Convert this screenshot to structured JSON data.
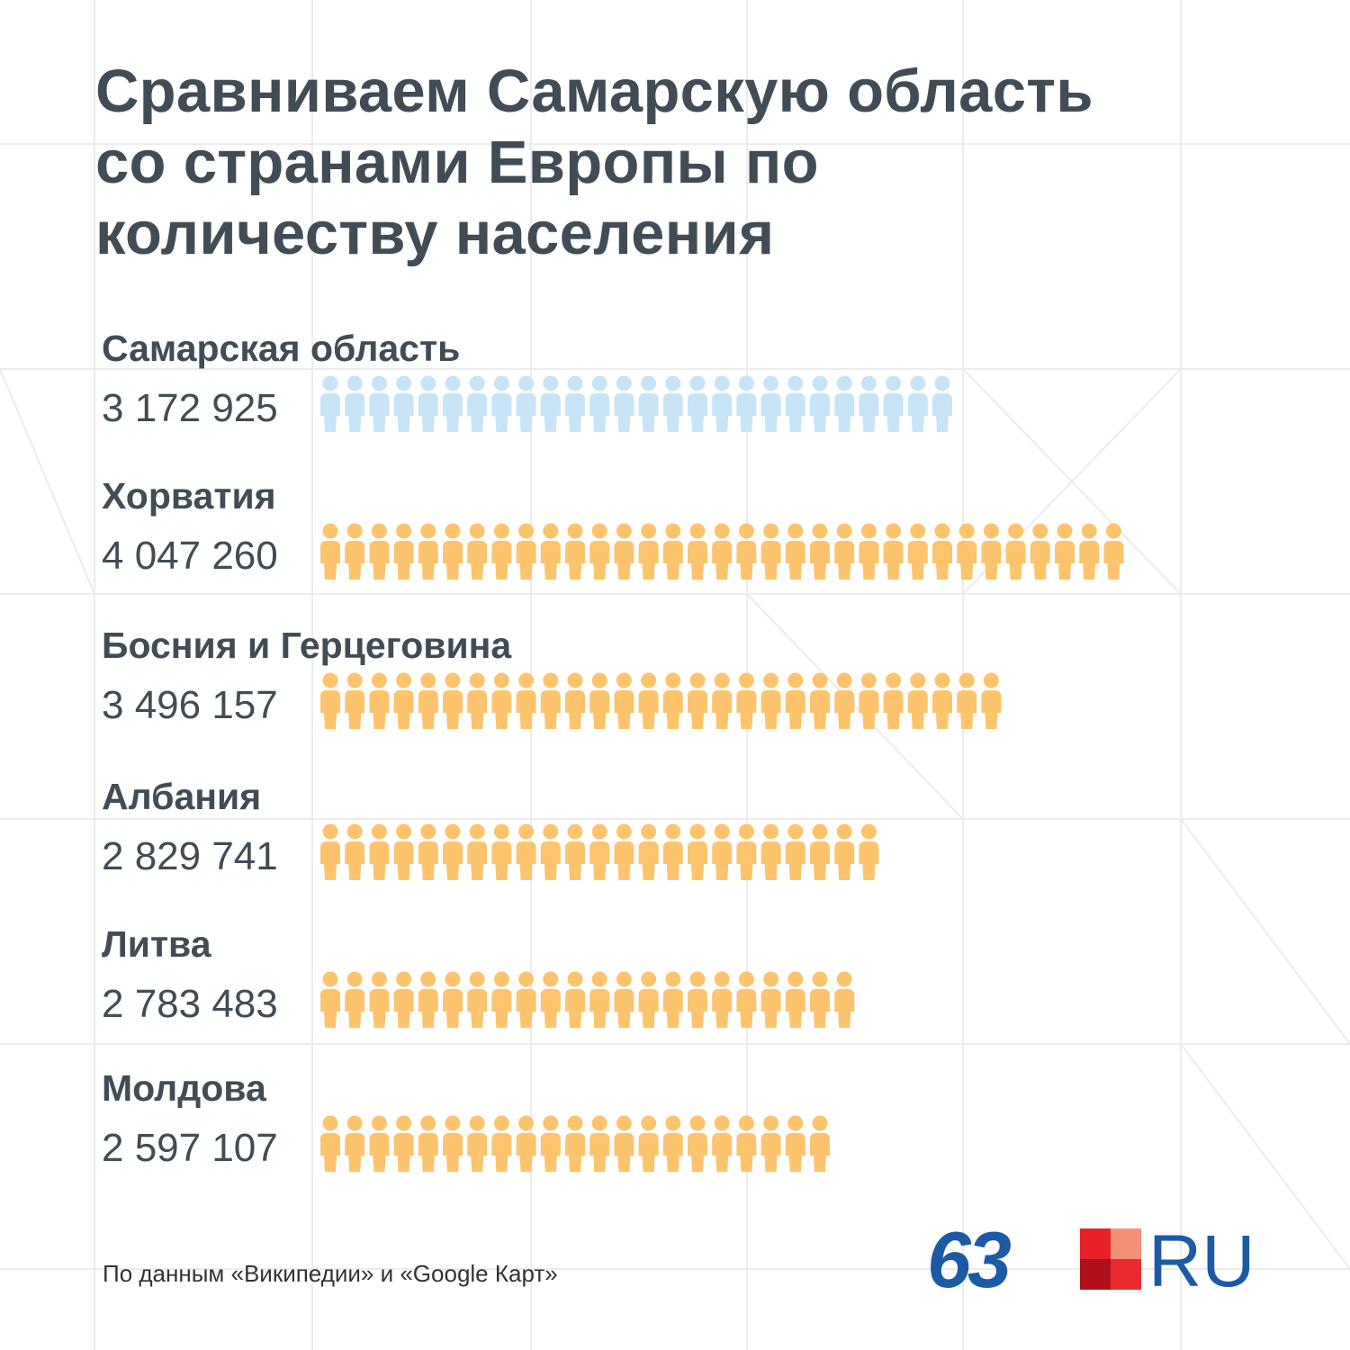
{
  "title_lines": [
    "Сравниваем Самарскую область",
    "со странами Европы по",
    "количеству населения"
  ],
  "chart_data": {
    "type": "bar",
    "title": "Сравниваем Самарскую область со странами Европы по количеству населения",
    "unit": "people (pictogram bars)",
    "categories": [
      "Самарская область",
      "Хорватия",
      "Босния и Герцеговина",
      "Албания",
      "Литва",
      "Молдова"
    ],
    "values": [
      3172925,
      4047260,
      3496157,
      2829741,
      2783483,
      2597107
    ],
    "labels": [
      "3 172 925",
      "4 047 260",
      "3 496 157",
      "2 829 741",
      "2 783 483",
      "2 597 107"
    ],
    "highlight_category": "Самарская область",
    "icon_counts": [
      26,
      33,
      28,
      23,
      22,
      21
    ],
    "colors": {
      "highlight": "#c8e5f8",
      "default": "#fdc46d"
    }
  },
  "footnote": "По данным «Википедии» и «Google Карт»",
  "logo": {
    "number": "63",
    "suffix": "RU",
    "colors": [
      "#e8202a",
      "#f58f78",
      "#b0101a",
      "#ea2a2f"
    ]
  }
}
